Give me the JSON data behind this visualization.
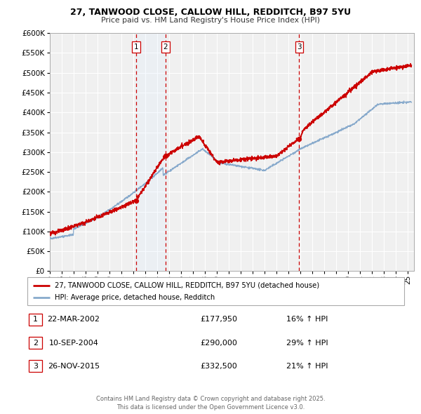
{
  "title": "27, TANWOOD CLOSE, CALLOW HILL, REDDITCH, B97 5YU",
  "subtitle": "Price paid vs. HM Land Registry's House Price Index (HPI)",
  "ylim": [
    0,
    600000
  ],
  "yticks": [
    0,
    50000,
    100000,
    150000,
    200000,
    250000,
    300000,
    350000,
    400000,
    450000,
    500000,
    550000,
    600000
  ],
  "xlim_start": 1995.0,
  "xlim_end": 2025.5,
  "xtick_years": [
    1995,
    1996,
    1997,
    1998,
    1999,
    2000,
    2001,
    2002,
    2003,
    2004,
    2005,
    2006,
    2007,
    2008,
    2009,
    2010,
    2011,
    2012,
    2013,
    2014,
    2015,
    2016,
    2017,
    2018,
    2019,
    2020,
    2021,
    2022,
    2023,
    2024,
    2025
  ],
  "sale_events": [
    {
      "label": "1",
      "year_decimal": 2002.22,
      "price": 177950
    },
    {
      "label": "2",
      "year_decimal": 2004.7,
      "price": 290000
    },
    {
      "label": "3",
      "year_decimal": 2015.9,
      "price": 332500
    }
  ],
  "red_line_color": "#cc0000",
  "blue_line_color": "#88aacc",
  "shade_color": "#ddeeff",
  "vline_color": "#cc0000",
  "grid_color": "#cccccc",
  "background_color": "#f0f0f0",
  "legend_entries": [
    "27, TANWOOD CLOSE, CALLOW HILL, REDDITCH, B97 5YU (detached house)",
    "HPI: Average price, detached house, Redditch"
  ],
  "table_rows": [
    {
      "num": "1",
      "date": "22-MAR-2002",
      "price": "£177,950",
      "pct": "16% ↑ HPI"
    },
    {
      "num": "2",
      "date": "10-SEP-2004",
      "price": "£290,000",
      "pct": "29% ↑ HPI"
    },
    {
      "num": "3",
      "date": "26-NOV-2015",
      "price": "£332,500",
      "pct": "21% ↑ HPI"
    }
  ],
  "footer": "Contains HM Land Registry data © Crown copyright and database right 2025.\nThis data is licensed under the Open Government Licence v3.0."
}
